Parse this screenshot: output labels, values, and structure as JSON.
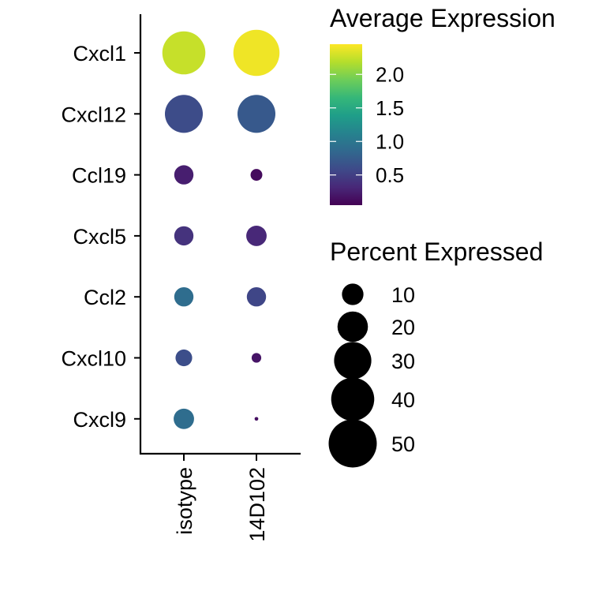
{
  "chart_data": {
    "type": "dotplot",
    "groups": [
      "isotype",
      "14D102"
    ],
    "genes": [
      "Cxcl1",
      "Cxcl12",
      "Ccl19",
      "Cxcl5",
      "Ccl2",
      "Cxcl10",
      "Cxcl9"
    ],
    "points": [
      {
        "gene": "Cxcl1",
        "group": "isotype",
        "avg_expression": 2.25,
        "pct_expressed": 40
      },
      {
        "gene": "Cxcl1",
        "group": "14D102",
        "avg_expression": 2.4,
        "pct_expressed": 46
      },
      {
        "gene": "Cxcl12",
        "group": "isotype",
        "avg_expression": 0.6,
        "pct_expressed": 31
      },
      {
        "gene": "Cxcl12",
        "group": "14D102",
        "avg_expression": 0.72,
        "pct_expressed": 31
      },
      {
        "gene": "Ccl19",
        "group": "isotype",
        "avg_expression": 0.25,
        "pct_expressed": 8
      },
      {
        "gene": "Ccl19",
        "group": "14D102",
        "avg_expression": 0.12,
        "pct_expressed": 3
      },
      {
        "gene": "Cxcl5",
        "group": "isotype",
        "avg_expression": 0.4,
        "pct_expressed": 8
      },
      {
        "gene": "Cxcl5",
        "group": "14D102",
        "avg_expression": 0.32,
        "pct_expressed": 9
      },
      {
        "gene": "Ccl2",
        "group": "isotype",
        "avg_expression": 0.9,
        "pct_expressed": 8
      },
      {
        "gene": "Ccl2",
        "group": "14D102",
        "avg_expression": 0.55,
        "pct_expressed": 8
      },
      {
        "gene": "Cxcl10",
        "group": "isotype",
        "avg_expression": 0.62,
        "pct_expressed": 6
      },
      {
        "gene": "Cxcl10",
        "group": "14D102",
        "avg_expression": 0.18,
        "pct_expressed": 2
      },
      {
        "gene": "Cxcl9",
        "group": "isotype",
        "avg_expression": 0.9,
        "pct_expressed": 9
      },
      {
        "gene": "Cxcl9",
        "group": "14D102",
        "avg_expression": 0.15,
        "pct_expressed": 0.3
      }
    ],
    "color_legend": {
      "title": "Average Expression",
      "range": [
        0.05,
        2.45
      ],
      "ticks": [
        2.0,
        1.5,
        1.0,
        0.5
      ],
      "tick_labels": [
        "2.0",
        "1.5",
        "1.0",
        "0.5"
      ],
      "colormap": [
        "#440154",
        "#482878",
        "#3E4A89",
        "#31688E",
        "#26828E",
        "#1F9E89",
        "#35B779",
        "#6DCD59",
        "#B4DE2C",
        "#FDE725"
      ]
    },
    "size_legend": {
      "title": "Percent Expressed",
      "values": [
        10,
        20,
        30,
        40,
        50
      ],
      "labels": [
        "10",
        "20",
        "30",
        "40",
        "50"
      ],
      "color": "#000000"
    },
    "grid": false
  }
}
